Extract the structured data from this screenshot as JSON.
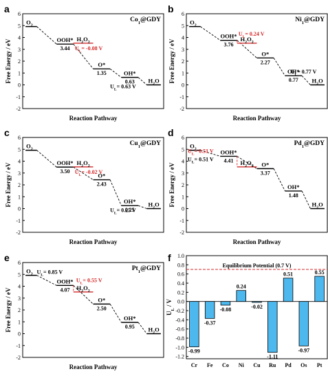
{
  "chart_data": [
    {
      "panel": "a",
      "type": "line",
      "title": "Co1@GDY",
      "xlabel": "Reaction Pathway",
      "ylabel": "Free Energy / eV",
      "ylim": [
        -2,
        6
      ],
      "y_ticks": [
        "-2",
        "-1",
        "0",
        "1",
        "2",
        "3",
        "4",
        "5",
        "6"
      ],
      "steps": [
        {
          "species": "O2",
          "value": 4.92
        },
        {
          "species": "OOH*",
          "value": 3.44,
          "value_label": "3.44"
        },
        {
          "species": "O*",
          "value": 1.35,
          "value_label": "1.35"
        },
        {
          "species": "OH*",
          "value": 0.63,
          "value_label": "0.63"
        },
        {
          "species": "H2O",
          "value": 0.0
        }
      ],
      "side_path": {
        "species": "H2O2",
        "value": 3.52,
        "from_step": 1
      },
      "annotations": [
        {
          "text": "UL= -0.08 V",
          "color": "#d62728"
        },
        {
          "text": "UL= 0.63 V",
          "color": "#000000"
        }
      ]
    },
    {
      "panel": "b",
      "type": "line",
      "title": "Ni1@GDY",
      "xlabel": "Reaction Pathway",
      "ylabel": "Free Energy / eV",
      "ylim": [
        -2,
        6
      ],
      "y_ticks": [
        "-2",
        "-1",
        "0",
        "1",
        "2",
        "3",
        "4",
        "5",
        "6"
      ],
      "steps": [
        {
          "species": "O2",
          "value": 4.92
        },
        {
          "species": "OOH*",
          "value": 3.76,
          "value_label": "3.76"
        },
        {
          "species": "O*",
          "value": 2.27,
          "value_label": "2.27"
        },
        {
          "species": "OH*",
          "value": 0.77,
          "value_label": "0.77"
        },
        {
          "species": "H2O",
          "value": 0.0
        }
      ],
      "side_path": {
        "species": "H2O2",
        "value": 3.52,
        "from_step": 1
      },
      "annotations": [
        {
          "text": "UL= 0.24 V",
          "color": "#d62728"
        },
        {
          "text": "UL= 0.77 V",
          "color": "#000000"
        }
      ]
    },
    {
      "panel": "c",
      "type": "line",
      "title": "Cu1@GDY",
      "xlabel": "Reaction Pathway",
      "ylabel": "Free Energy / eV",
      "ylim": [
        -2,
        6
      ],
      "y_ticks": [
        "-2",
        "-1",
        "0",
        "1",
        "2",
        "3",
        "4",
        "5",
        "6"
      ],
      "steps": [
        {
          "species": "O2",
          "value": 4.92
        },
        {
          "species": "OOH*",
          "value": 3.5,
          "value_label": "3.50"
        },
        {
          "species": "O*",
          "value": 2.43,
          "value_label": "2.43"
        },
        {
          "species": "OH*",
          "value": 0.25,
          "value_label": "0.25"
        },
        {
          "species": "H2O",
          "value": 0.0
        }
      ],
      "side_path": {
        "species": "H2O2",
        "value": 3.52,
        "from_step": 1
      },
      "annotations": [
        {
          "text": "UL= -0.02 V",
          "color": "#d62728"
        },
        {
          "text": "UL= 0.25 V",
          "color": "#000000"
        }
      ]
    },
    {
      "panel": "d",
      "type": "line",
      "title": "Pd1@GDY",
      "xlabel": "Reaction Pathway",
      "ylabel": "Free Energy / eV",
      "ylim": [
        -2,
        6
      ],
      "y_ticks": [
        "-2",
        "-1",
        "0",
        "1",
        "2",
        "3",
        "4",
        "5",
        "6"
      ],
      "steps": [
        {
          "species": "O2",
          "value": 4.92
        },
        {
          "species": "OOH*",
          "value": 4.41,
          "value_label": "4.41"
        },
        {
          "species": "O*",
          "value": 3.37,
          "value_label": "3.37"
        },
        {
          "species": "OH*",
          "value": 1.48,
          "value_label": "1.48"
        },
        {
          "species": "H2O",
          "value": 0.0
        }
      ],
      "side_path": {
        "species": "H2O2",
        "value": 3.52,
        "from_step": 1
      },
      "annotations": [
        {
          "text": "UL= 0.51 V",
          "color": "#d62728"
        },
        {
          "text": "UL= 0.51 V",
          "color": "#000000"
        }
      ]
    },
    {
      "panel": "e",
      "type": "line",
      "title": "Pt1@GDY",
      "xlabel": "Reaction Pathway",
      "ylabel": "Free Energy / eV",
      "ylim": [
        -2,
        6
      ],
      "y_ticks": [
        "-2",
        "-1",
        "0",
        "1",
        "2",
        "3",
        "4",
        "5",
        "6"
      ],
      "steps": [
        {
          "species": "O2",
          "value": 4.92
        },
        {
          "species": "OOH*",
          "value": 4.07,
          "value_label": "4.07"
        },
        {
          "species": "O*",
          "value": 2.5,
          "value_label": "2.50"
        },
        {
          "species": "OH*",
          "value": 0.95,
          "value_label": "0.95"
        },
        {
          "species": "H2O",
          "value": 0.0
        }
      ],
      "side_path": {
        "species": "H2O2",
        "value": 3.52,
        "from_step": 1
      },
      "annotations": [
        {
          "text": "UL= 0.85 V",
          "color": "#000000"
        },
        {
          "text": "UL= 0.55 V",
          "color": "#d62728"
        }
      ]
    },
    {
      "panel": "f",
      "type": "bar",
      "categories": [
        "Cr",
        "Fe",
        "Co",
        "Ni",
        "Cu",
        "Ru",
        "Pd",
        "Os",
        "Pt"
      ],
      "values": [
        -0.99,
        -0.37,
        -0.08,
        0.24,
        -0.02,
        -1.11,
        0.51,
        -0.97,
        0.55
      ],
      "value_labels": [
        "-0.99",
        "-0.37",
        "-0.08",
        "0.24",
        "-0.02",
        "-1.11",
        "0.51",
        "-0.97",
        "0.55"
      ],
      "ylabel": "UL / V",
      "ylim": [
        -1.25,
        1.0
      ],
      "y_ticks": [
        "-1.2",
        "-1.0",
        "-0.8",
        "-0.6",
        "-0.4",
        "-0.2",
        "0.0",
        "0.2",
        "0.4",
        "0.6",
        "0.8",
        "1.0"
      ],
      "bar_color": "#4db8ee",
      "reference_line": {
        "value": 0.7,
        "label": "Equilibrium Potential (0.7 V)",
        "color": "#d62728"
      }
    }
  ]
}
